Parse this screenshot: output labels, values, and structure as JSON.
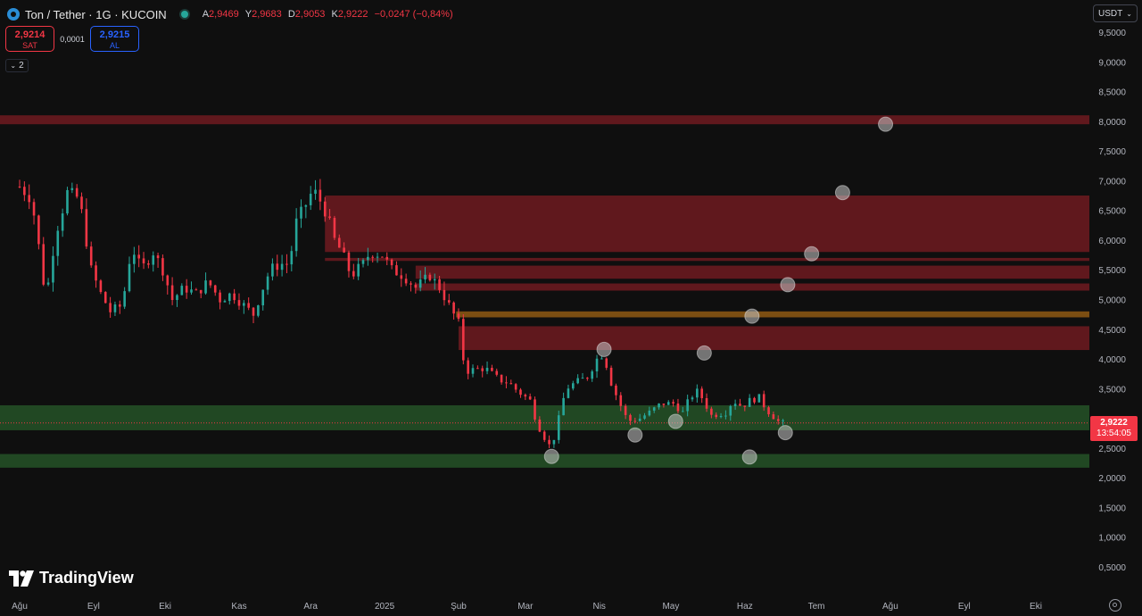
{
  "header": {
    "title": "Ton / Tether · 1G · KUCOIN",
    "ohlc": [
      {
        "k": "A",
        "v": "2,9469"
      },
      {
        "k": "Y",
        "v": "2,9683"
      },
      {
        "k": "D",
        "v": "2,9053"
      },
      {
        "k": "K",
        "v": "2,9222"
      },
      {
        "k": "",
        "v": "−0,0247 (−0,84%)"
      }
    ]
  },
  "trade": {
    "sell_price": "2,9214",
    "sell_label": "SAT",
    "spread": "0,0001",
    "buy_price": "2,9215",
    "buy_label": "AL"
  },
  "indicators_toggle": "2",
  "currency": "USDT",
  "price_tag": {
    "price": "2,9222",
    "countdown": "13:54:05"
  },
  "logo_text": "TradingView",
  "colors": {
    "bg": "#0f0f0f",
    "up": "#26a69a",
    "down": "#f23645",
    "resistance_zone": "rgba(178,34,44,0.5)",
    "support_zone": "rgba(56,142,60,0.45)",
    "orange_zone": "rgba(196,120,20,0.6)"
  },
  "chart_data": {
    "type": "candlestick",
    "y_ticks": [
      "9,5000",
      "9,0000",
      "8,5000",
      "8,0000",
      "7,5000",
      "7,0000",
      "6,5000",
      "6,0000",
      "5,5000",
      "5,0000",
      "4,5000",
      "4,0000",
      "3,5000",
      "2,5000",
      "2,0000",
      "1,5000",
      "1,0000",
      "0,5000"
    ],
    "y_tick_values": [
      9.5,
      9.0,
      8.5,
      8.0,
      7.5,
      7.0,
      6.5,
      6.0,
      5.5,
      5.0,
      4.5,
      4.0,
      3.5,
      2.5,
      2.0,
      1.5,
      1.0,
      0.5
    ],
    "x_ticks": [
      "Ağu",
      "Eyl",
      "Eki",
      "Kas",
      "Ara",
      "2025",
      "Şub",
      "Mar",
      "Nis",
      "May",
      "Haz",
      "Tem",
      "Ağu",
      "Eyl",
      "Eki"
    ],
    "x_tick_dates": [
      "2024-08-01",
      "2024-09-01",
      "2024-10-01",
      "2024-11-01",
      "2024-12-01",
      "2025-01-01",
      "2025-02-01",
      "2025-03-01",
      "2025-04-01",
      "2025-05-01",
      "2025-06-01",
      "2025-07-01",
      "2025-08-01",
      "2025-09-01",
      "2025-10-01"
    ],
    "close_path": [
      [
        "2024-08-01",
        6.9
      ],
      [
        "2024-08-06",
        6.7
      ],
      [
        "2024-08-09",
        5.9
      ],
      [
        "2024-08-12",
        5.0
      ],
      [
        "2024-08-16",
        6.1
      ],
      [
        "2024-08-21",
        6.8
      ],
      [
        "2024-08-26",
        6.7
      ],
      [
        "2024-08-31",
        5.5
      ],
      [
        "2024-09-04",
        5.1
      ],
      [
        "2024-09-08",
        4.8
      ],
      [
        "2024-09-13",
        4.9
      ],
      [
        "2024-09-17",
        5.9
      ],
      [
        "2024-09-21",
        5.5
      ],
      [
        "2024-09-26",
        5.8
      ],
      [
        "2024-09-30",
        5.5
      ],
      [
        "2024-10-04",
        5.0
      ],
      [
        "2024-10-09",
        5.2
      ],
      [
        "2024-10-14",
        5.1
      ],
      [
        "2024-10-19",
        5.3
      ],
      [
        "2024-10-24",
        5.0
      ],
      [
        "2024-10-29",
        5.1
      ],
      [
        "2024-11-03",
        4.9
      ],
      [
        "2024-11-07",
        4.75
      ],
      [
        "2024-11-11",
        5.2
      ],
      [
        "2024-11-14",
        5.5
      ],
      [
        "2024-11-18",
        5.6
      ],
      [
        "2024-11-22",
        5.6
      ],
      [
        "2024-11-25",
        6.3
      ],
      [
        "2024-11-29",
        6.6
      ],
      [
        "2024-12-02",
        6.85
      ],
      [
        "2024-12-06",
        6.6
      ],
      [
        "2024-12-08",
        6.4
      ],
      [
        "2024-12-11",
        6.0
      ],
      [
        "2024-12-14",
        5.8
      ],
      [
        "2024-12-18",
        5.4
      ],
      [
        "2024-12-23",
        5.6
      ],
      [
        "2024-12-26",
        5.8
      ],
      [
        "2024-12-31",
        5.75
      ],
      [
        "2025-01-04",
        5.5
      ],
      [
        "2025-01-09",
        5.4
      ],
      [
        "2025-01-14",
        5.2
      ],
      [
        "2025-01-20",
        5.4
      ],
      [
        "2025-01-24",
        5.2
      ],
      [
        "2025-01-28",
        4.9
      ],
      [
        "2025-02-01",
        4.6
      ],
      [
        "2025-02-03",
        4.0
      ],
      [
        "2025-02-05",
        3.8
      ],
      [
        "2025-02-12",
        3.85
      ],
      [
        "2025-02-18",
        3.65
      ],
      [
        "2025-02-22",
        3.6
      ],
      [
        "2025-02-26",
        3.45
      ],
      [
        "2025-03-03",
        3.3
      ],
      [
        "2025-03-06",
        2.9
      ],
      [
        "2025-03-10",
        2.6
      ],
      [
        "2025-03-12",
        2.5
      ],
      [
        "2025-03-15",
        3.0
      ],
      [
        "2025-03-18",
        3.5
      ],
      [
        "2025-03-22",
        3.6
      ],
      [
        "2025-03-27",
        3.7
      ],
      [
        "2025-03-31",
        4.0
      ],
      [
        "2025-04-03",
        4.1
      ],
      [
        "2025-04-05",
        3.7
      ],
      [
        "2025-04-09",
        3.3
      ],
      [
        "2025-04-13",
        2.95
      ],
      [
        "2025-04-18",
        3.0
      ],
      [
        "2025-04-22",
        3.1
      ],
      [
        "2025-04-27",
        3.25
      ],
      [
        "2025-05-02",
        3.25
      ],
      [
        "2025-05-06",
        3.1
      ],
      [
        "2025-05-09",
        3.35
      ],
      [
        "2025-05-12",
        3.45
      ],
      [
        "2025-05-14",
        3.35
      ],
      [
        "2025-05-18",
        3.05
      ],
      [
        "2025-05-24",
        3.1
      ],
      [
        "2025-05-27",
        3.3
      ],
      [
        "2025-05-31",
        3.2
      ],
      [
        "2025-06-03",
        3.3
      ],
      [
        "2025-06-07",
        3.35
      ],
      [
        "2025-06-10",
        3.15
      ],
      [
        "2025-06-15",
        2.95
      ],
      [
        "2025-06-17",
        2.92
      ]
    ],
    "zones": [
      {
        "kind": "resistance",
        "y1": 7.95,
        "y2": 8.1
      },
      {
        "kind": "resistance",
        "y1": 5.8,
        "y2": 6.75,
        "from": "2024-12-07"
      },
      {
        "kind": "resistance",
        "y1": 5.65,
        "y2": 5.7,
        "from": "2024-12-07"
      },
      {
        "kind": "resistance",
        "y1": 5.35,
        "y2": 5.57,
        "from": "2025-01-14"
      },
      {
        "kind": "resistance",
        "y1": 5.15,
        "y2": 5.27,
        "from": "2025-01-14"
      },
      {
        "kind": "orange",
        "y1": 4.7,
        "y2": 4.8,
        "from": "2025-01-31"
      },
      {
        "kind": "resistance",
        "y1": 4.15,
        "y2": 4.55,
        "from": "2025-02-01"
      },
      {
        "kind": "support",
        "y1": 2.8,
        "y2": 3.22
      },
      {
        "kind": "support",
        "y1": 2.17,
        "y2": 2.4
      }
    ],
    "markers": [
      [
        "2025-03-12",
        2.36
      ],
      [
        "2025-04-03",
        4.16
      ],
      [
        "2025-04-16",
        2.72
      ],
      [
        "2025-05-03",
        2.95
      ],
      [
        "2025-05-15",
        4.1
      ],
      [
        "2025-06-03",
        2.35
      ],
      [
        "2025-06-04",
        4.72
      ],
      [
        "2025-06-18",
        2.76
      ],
      [
        "2025-06-19",
        5.25
      ],
      [
        "2025-06-29",
        5.77
      ],
      [
        "2025-07-12",
        6.8
      ],
      [
        "2025-07-30",
        7.95
      ]
    ],
    "last_price": 2.9222,
    "grid": false,
    "legend": "none"
  }
}
